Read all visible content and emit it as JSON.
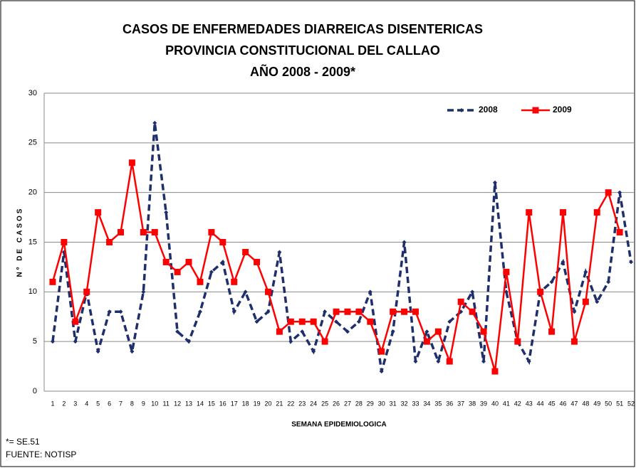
{
  "chart_data": {
    "type": "line",
    "title": [
      "CASOS DE ENFERMEDADES DIARREICAS  DISENTERICAS",
      "PROVINCIA CONSTITUCIONAL DEL CALLAO",
      "AÑO 2008 - 2009*"
    ],
    "x_label": "SEMANA EPIDEMIOLOGICA",
    "y_label": "Nº DE CASOS",
    "footnotes": [
      "*= SE.51",
      "FUENTE: NOTISP"
    ],
    "categories": [
      "1",
      "2",
      "3",
      "4",
      "5",
      "6",
      "7",
      "8",
      "9",
      "10",
      "11",
      "12",
      "13",
      "14",
      "15",
      "16",
      "17",
      "18",
      "19",
      "20",
      "21",
      "22",
      "23",
      "24",
      "25",
      "26",
      "27",
      "28",
      "29",
      "30",
      "31",
      "32",
      "33",
      "34",
      "35",
      "36",
      "37",
      "38",
      "39",
      "40",
      "41",
      "42",
      "43",
      "44",
      "45",
      "46",
      "47",
      "48",
      "49",
      "50",
      "51",
      "52"
    ],
    "series": [
      {
        "name": "2008",
        "color": "#1f2f6b",
        "dashed": true,
        "values": [
          5,
          14,
          5,
          10,
          4,
          8,
          8,
          4,
          10,
          27,
          18,
          6,
          5,
          8,
          12,
          13,
          8,
          10,
          7,
          8,
          14,
          5,
          6,
          4,
          8,
          7,
          6,
          7,
          10,
          2,
          6,
          15,
          3,
          6,
          3,
          7,
          8,
          10,
          3,
          21,
          10,
          5,
          3,
          10,
          11,
          13,
          8,
          12,
          9,
          11,
          20,
          13
        ]
      },
      {
        "name": "2009",
        "color": "#ff0000",
        "dashed": false,
        "values": [
          11,
          15,
          7,
          10,
          18,
          15,
          16,
          23,
          16,
          16,
          13,
          12,
          13,
          11,
          16,
          15,
          11,
          14,
          13,
          10,
          6,
          7,
          7,
          7,
          5,
          8,
          8,
          8,
          7,
          4,
          8,
          8,
          8,
          5,
          6,
          3,
          9,
          8,
          6,
          2,
          12,
          5,
          18,
          10,
          6,
          18,
          5,
          9,
          18,
          20,
          16,
          null
        ]
      }
    ],
    "ylim": [
      0,
      30
    ],
    "yticks": [
      0,
      5,
      10,
      15,
      20,
      25,
      30
    ],
    "grid": true,
    "legend": "top-right"
  }
}
